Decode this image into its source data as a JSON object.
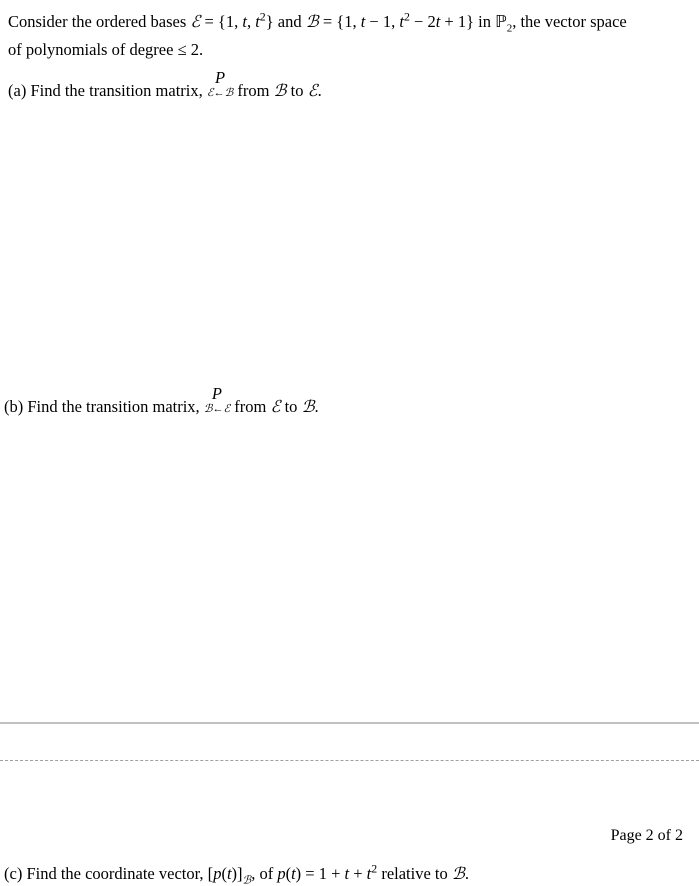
{
  "intro": {
    "l1a": "Consider the ordered bases ",
    "E": "ℰ",
    "eq1": " = {1, ",
    "t": "t",
    "comma": ", ",
    "t2": "t",
    "sup2": "2",
    "close1": "} and ",
    "B": "ℬ",
    "eq2": " = {1, ",
    "tm1a": "t",
    "tm1b": " − 1, ",
    "t2a": "t",
    "t2b": " − 2",
    "t2c": "t",
    "t2d": " + 1} in ",
    "P2": "ℙ",
    "P2sub": "2",
    "tail": ", the vector space",
    "l2a": "of polynomials of degree ≤ 2."
  },
  "a": {
    "pre": "(a) Find the transition matrix, ",
    "Ptop": "P",
    "Pbot_l": "ℰ",
    "arrow": "←",
    "Pbot_r": "ℬ",
    "mid": " from ",
    "B": "ℬ",
    "to": " to ",
    "E": "ℰ",
    "dot": "."
  },
  "b": {
    "pre": "(b) Find the transition matrix, ",
    "Ptop": "P",
    "Pbot_l": "ℬ",
    "arrow": "←",
    "Pbot_r": "ℰ",
    "mid": " from ",
    "E": "ℰ",
    "to": " to ",
    "B": "ℬ",
    "dot": "."
  },
  "pagenum": "Page 2 of 2",
  "c": {
    "pre": "(c) Find the coordinate vector, [",
    "p": "p",
    "paren1": "(",
    "t1": "t",
    "paren2": ")]",
    "Bsub": "ℬ",
    "of": ", of ",
    "p2": "p",
    "paren3": "(",
    "t2": "t",
    "paren4": ") = 1 + ",
    "t3": "t",
    "plus": " + ",
    "t4": "t",
    "sup2": "2",
    "rel": " relative to ",
    "B": "ℬ",
    "dot": "."
  }
}
